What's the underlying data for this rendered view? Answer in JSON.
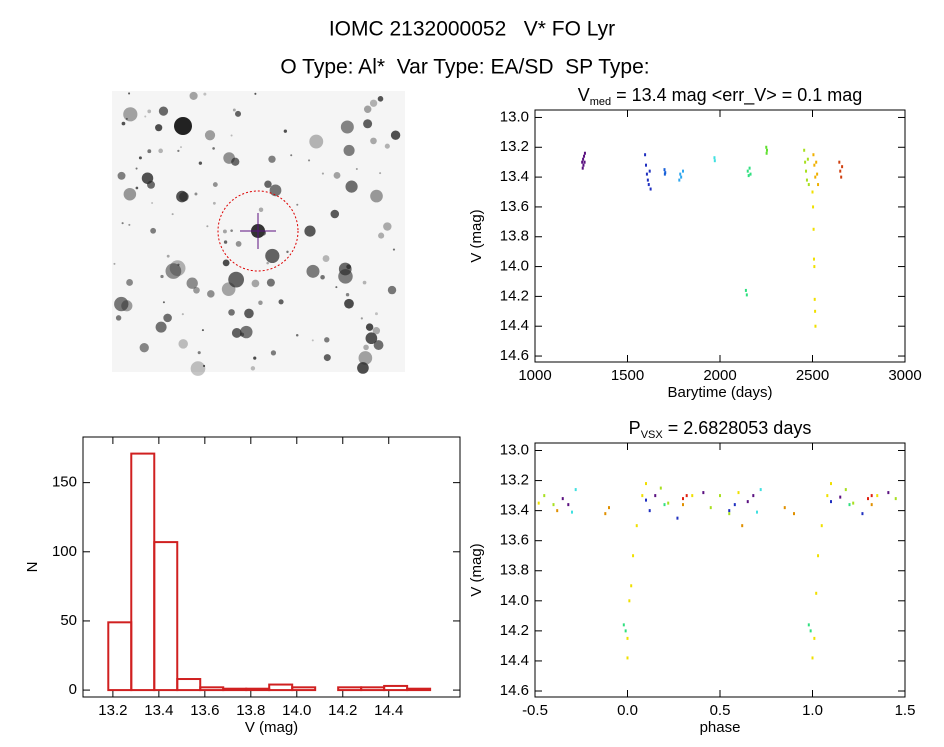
{
  "title": "IOMC 2132000052   V* FO Lyr",
  "subtitle": "O Type: Al*  Var Type: EA/SD  SP Type:",
  "chart_data": [
    {
      "type": "scatter",
      "title": "V",
      "title_subscript": "med",
      "title_rest": " = 13.4 mag <err_V> = 0.1 mag",
      "xlabel": "Barytime (days)",
      "ylabel": "V (mag)",
      "xlim": [
        1000,
        3000
      ],
      "xticks": [
        1000,
        1500,
        2000,
        2500,
        3000
      ],
      "ylim": [
        12.95,
        14.64
      ],
      "y_inverted": true,
      "yticks": [
        {
          "value": 13,
          "label": "13.0"
        },
        13.2,
        13.4,
        13.6,
        13.8,
        {
          "value": 14,
          "label": "14.0"
        },
        14.2,
        14.4,
        14.6
      ],
      "series": [
        {
          "color": "#5a1080",
          "x": [
            1255,
            1258,
            1260,
            1262,
            1265,
            1268,
            1270
          ],
          "y": [
            13.3,
            13.34,
            13.28,
            13.32,
            13.26,
            13.3,
            13.24
          ]
        },
        {
          "color": "#2030c0",
          "x": [
            1595,
            1600,
            1605,
            1610,
            1615,
            1620,
            1625
          ],
          "y": [
            13.25,
            13.32,
            13.38,
            13.42,
            13.45,
            13.36,
            13.48
          ]
        },
        {
          "color": "#1860d8",
          "x": [
            1700,
            1702,
            1704
          ],
          "y": [
            13.35,
            13.38,
            13.37
          ]
        },
        {
          "color": "#30a8f0",
          "x": [
            1780,
            1785,
            1790,
            1800
          ],
          "y": [
            13.42,
            13.38,
            13.4,
            13.36
          ]
        },
        {
          "color": "#40e0e0",
          "x": [
            1970,
            1972
          ],
          "y": [
            13.27,
            13.29
          ]
        },
        {
          "color": "#30e080",
          "x": [
            2140,
            2145,
            2150,
            2155,
            2160,
            2165
          ],
          "y": [
            14.16,
            14.19,
            13.36,
            13.39,
            13.34,
            13.38
          ]
        },
        {
          "color": "#60e030",
          "x": [
            2250,
            2252,
            2254
          ],
          "y": [
            13.2,
            13.24,
            13.22
          ]
        },
        {
          "color": "#a8e020",
          "x": [
            2455,
            2460,
            2465,
            2470,
            2475,
            2480
          ],
          "y": [
            13.22,
            13.3,
            13.36,
            13.42,
            13.28,
            13.45
          ]
        },
        {
          "color": "#f0e000",
          "x": [
            2500,
            2503,
            2506,
            2508,
            2510,
            2512,
            2514,
            2516
          ],
          "y": [
            13.5,
            13.6,
            13.75,
            13.95,
            14.0,
            14.22,
            14.3,
            14.4
          ]
        },
        {
          "color": "#f0b000",
          "x": [
            2505,
            2510,
            2515,
            2520,
            2525,
            2530
          ],
          "y": [
            13.25,
            13.32,
            13.4,
            13.3,
            13.38,
            13.45
          ]
        },
        {
          "color": "#d04010",
          "x": [
            2645,
            2650,
            2655,
            2660
          ],
          "y": [
            13.3,
            13.36,
            13.4,
            13.33
          ]
        }
      ]
    },
    {
      "type": "histogram",
      "xlabel": "V (mag)",
      "ylabel": "N",
      "color": "#d02020",
      "xlim": [
        13.07,
        14.71
      ],
      "xticks": [
        13.2,
        13.4,
        13.6,
        13.8,
        {
          "value": 14,
          "label": "14.0"
        },
        14.2,
        14.4
      ],
      "ylim": [
        -5,
        183
      ],
      "yticks": [
        0,
        50,
        100,
        150
      ],
      "bins": [
        13.18,
        13.28,
        13.38,
        13.48,
        13.58,
        13.68,
        13.78,
        13.88,
        13.98,
        14.08,
        14.18,
        14.28,
        14.38,
        14.48,
        14.58
      ],
      "counts": [
        49,
        171,
        107,
        8,
        2,
        1,
        1,
        4,
        2,
        0,
        2,
        2,
        3,
        1
      ]
    },
    {
      "type": "scatter",
      "title": "P",
      "title_subscript": "VSX",
      "title_rest": " = 2.6828053 days",
      "xlabel": "phase",
      "ylabel": "V (mag)",
      "xlim": [
        -0.5,
        1.5
      ],
      "xticks": [
        -0.5,
        {
          "value": 0,
          "label": "0.0"
        },
        0.5,
        {
          "value": 1,
          "label": "1.0"
        },
        1.5
      ],
      "ylim": [
        12.95,
        14.64
      ],
      "y_inverted": true,
      "yticks": [
        {
          "value": 13,
          "label": "13.0"
        },
        13.2,
        13.4,
        13.6,
        13.8,
        {
          "value": 14,
          "label": "14.0"
        },
        14.2,
        14.4,
        14.6
      ],
      "series": [
        {
          "color": "#5a1080",
          "x": [
            -0.35,
            -0.32,
            0.15,
            0.41,
            0.65,
            0.68,
            1.15,
            1.41
          ],
          "y": [
            13.32,
            13.36,
            13.3,
            13.28,
            13.34,
            13.3,
            13.31,
            13.28
          ]
        },
        {
          "color": "#2030c0",
          "x": [
            0.1,
            0.12,
            0.27,
            0.55,
            0.58,
            1.1,
            1.27
          ],
          "y": [
            13.33,
            13.4,
            13.45,
            13.4,
            13.36,
            13.34,
            13.42
          ]
        },
        {
          "color": "#40e0e0",
          "x": [
            -0.28,
            -0.3,
            0.72,
            0.7
          ],
          "y": [
            13.26,
            13.41,
            13.26,
            13.41
          ]
        },
        {
          "color": "#30e080",
          "x": [
            -0.02,
            -0.01,
            0.98,
            0.99,
            0.2,
            1.2
          ],
          "y": [
            14.16,
            14.2,
            14.16,
            14.2,
            13.36,
            13.36
          ]
        },
        {
          "color": "#a8e020",
          "x": [
            -0.45,
            -0.4,
            0.18,
            0.22,
            0.45,
            0.5,
            0.55,
            1.18,
            1.22,
            1.45
          ],
          "y": [
            13.3,
            13.36,
            13.25,
            13.35,
            13.38,
            13.3,
            13.42,
            13.26,
            13.35,
            13.32
          ]
        },
        {
          "color": "#f0e000",
          "x": [
            0.0,
            0.0,
            0.01,
            0.02,
            0.03,
            0.05,
            0.08,
            0.1,
            1.0,
            1.01,
            1.02,
            1.03,
            1.05,
            1.08,
            1.1,
            -0.48,
            0.35,
            0.6,
            1.35
          ],
          "y": [
            14.38,
            14.25,
            14.0,
            13.9,
            13.7,
            13.5,
            13.3,
            13.22,
            14.38,
            14.25,
            13.95,
            13.7,
            13.5,
            13.3,
            13.22,
            13.35,
            13.3,
            13.28,
            13.3
          ]
        },
        {
          "color": "#e09000",
          "x": [
            -0.1,
            -0.12,
            0.3,
            0.62,
            0.85,
            0.9,
            1.32,
            -0.38
          ],
          "y": [
            13.38,
            13.42,
            13.36,
            13.5,
            13.38,
            13.42,
            13.36,
            13.4
          ]
        },
        {
          "color": "#e02010",
          "x": [
            0.3,
            0.32,
            1.3,
            1.32
          ],
          "y": [
            13.32,
            13.3,
            13.32,
            13.3
          ]
        }
      ]
    }
  ]
}
